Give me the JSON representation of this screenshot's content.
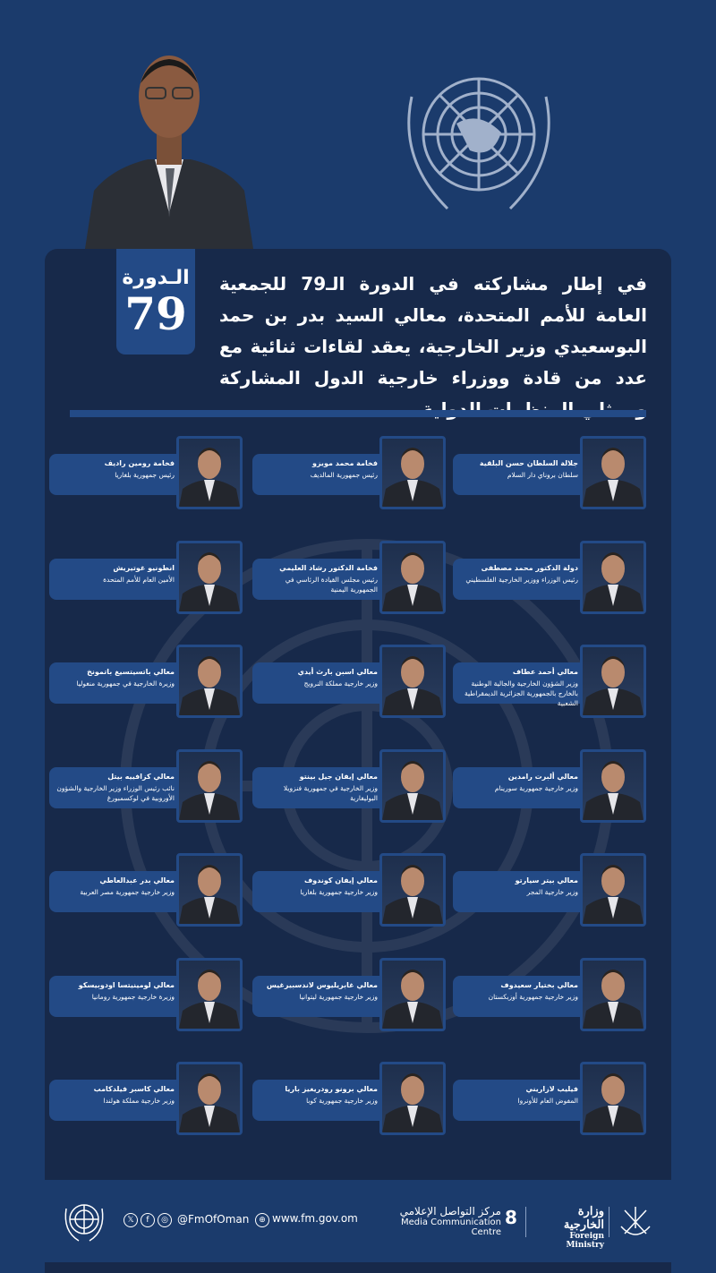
{
  "colors": {
    "background": "#1b3b6c",
    "panel": "#17294a",
    "card": "#234a86"
  },
  "badge": {
    "label": "الـدورة",
    "number": "79"
  },
  "intro": "في إطار مشاركته في الدورة الـ79 للجمعية العامة للأمم المتحدة، معالي السيد بدر بن حمد البوسعيدي وزير الخارجية، يعقد لقاءات ثنائية مع عدد من قادة ووزراء خارجية الدول المشاركة وممثلي المنظمات الدولية.",
  "rows": [
    [
      {
        "name": "جلالة السلطان حسن البلقية",
        "role": "سلطان بروناي دار السلام"
      },
      {
        "name": "فخامة محمد مويزو",
        "role": "رئيس جمهورية المالديف"
      },
      {
        "name": "فخامة رومين راديف",
        "role": "رئيس جمهورية بلغاريا"
      }
    ],
    [
      {
        "name": "دولة الدكتور محمد مصطفى",
        "role": "رئيس الوزراء ووزير الخارجية الفلسطيني"
      },
      {
        "name": "فخامة الدكتور رشاد العليمي",
        "role": "رئيس مجلس القيادة الرئاسي في الجمهورية اليمنية"
      },
      {
        "name": "انطونيو غوتيريش",
        "role": "الأمين العام للأمم المتحدة"
      }
    ],
    [
      {
        "name": "معالي أحمد عطاف",
        "role": "وزير الشؤون الخارجية والجالية الوطنية بالخارج بالجمهورية الجزائرية الديمقراطية الشعبية"
      },
      {
        "name": "معالي اسبن بارث أيدي",
        "role": "وزير خارجية مملكة النرويج"
      },
      {
        "name": "معالي باتسيتسيغ باتمونخ",
        "role": "وزيرة الخارجية في جمهورية منغوليا"
      }
    ],
    [
      {
        "name": "معالي ألبرت رامدين",
        "role": "وزير خارجية جمهورية سورينام"
      },
      {
        "name": "معالي إيفان جيل بينتو",
        "role": "وزير الخارجية في جمهورية فنزويلا البوليفارية"
      },
      {
        "name": "معالي كزافييه بيتل",
        "role": "نائب رئيس الوزراء وزير الخارجية والشؤون الأوروبية في لوكسمبورغ"
      }
    ],
    [
      {
        "name": "معالي بيتر سيارتو",
        "role": "وزير خارجية المجر"
      },
      {
        "name": "معالي إيفان كوندوف",
        "role": "وزير خارجية جمهورية بلغاريا"
      },
      {
        "name": "معالي بدر عبدالعاطي",
        "role": "وزير خارجية جمهورية مصر العربية"
      }
    ],
    [
      {
        "name": "معالي بختيار سعيدوف",
        "role": "وزير خارجية جمهورية أوزبكستان"
      },
      {
        "name": "معالي غابريليوس لاندسبيرغيس",
        "role": "وزير خارجية جمهورية ليتوانيا"
      },
      {
        "name": "معالي لومينيتسا اودوبيسكو",
        "role": "وزيرة خارجية جمهورية رومانيا"
      }
    ],
    [
      {
        "name": "فيليب لازاريني",
        "role": "المفوض العام للأونروا"
      },
      {
        "name": "معالي برونو رودريغيز باريا",
        "role": "وزير خارجية جمهورية كوبا"
      },
      {
        "name": "معالي كاسبر فيلدكامب",
        "role": "وزير خارجية مملكة هولندا"
      }
    ]
  ],
  "footer": {
    "social_icons": [
      "x-icon",
      "facebook-icon",
      "instagram-icon"
    ],
    "handle": "@FmOfOman",
    "website": "www.fm.gov.om",
    "mcc_ar": "مركز التواصل الإعلامي",
    "mcc_en": "Media Communication Centre",
    "ministry_ar": "وزارة الخارجية",
    "ministry_en": "Foreign Ministry"
  }
}
